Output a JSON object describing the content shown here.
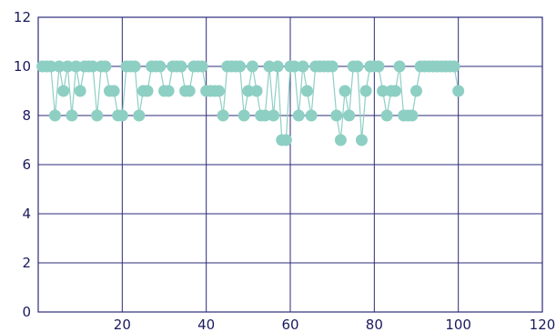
{
  "chart_data": {
    "type": "line",
    "title": "",
    "xlabel": "",
    "ylabel": "",
    "xlim": [
      0,
      120
    ],
    "ylim": [
      0,
      12
    ],
    "x_ticks": [
      20,
      40,
      60,
      80,
      100,
      120
    ],
    "y_ticks": [
      0,
      2,
      4,
      6,
      8,
      10,
      12
    ],
    "grid": true,
    "legend": "none",
    "series": [
      {
        "color": "#8ecfc4",
        "marker": "circle",
        "x": [
          1,
          2,
          3,
          4,
          5,
          6,
          7,
          8,
          9,
          10,
          11,
          12,
          13,
          14,
          15,
          16,
          17,
          18,
          19,
          20,
          21,
          22,
          23,
          24,
          25,
          26,
          27,
          28,
          29,
          30,
          31,
          32,
          33,
          34,
          35,
          36,
          37,
          38,
          39,
          40,
          41,
          42,
          43,
          44,
          45,
          46,
          47,
          48,
          49,
          50,
          51,
          52,
          53,
          54,
          55,
          56,
          57,
          58,
          59,
          60,
          61,
          62,
          63,
          64,
          65,
          66,
          67,
          68,
          69,
          70,
          71,
          72,
          73,
          74,
          75,
          76,
          77,
          78,
          79,
          80,
          81,
          82,
          83,
          84,
          85,
          86,
          87,
          88,
          89,
          90,
          91,
          92,
          93,
          94,
          95,
          96,
          97,
          98,
          99,
          100
        ],
        "y": [
          10,
          10,
          10,
          8,
          10,
          9,
          10,
          8,
          10,
          9,
          10,
          10,
          10,
          8,
          10,
          10,
          9,
          9,
          8,
          8,
          10,
          10,
          10,
          8,
          9,
          9,
          10,
          10,
          10,
          9,
          9,
          10,
          10,
          10,
          9,
          9,
          10,
          10,
          10,
          9,
          9,
          9,
          9,
          8,
          10,
          10,
          10,
          10,
          8,
          9,
          10,
          9,
          8,
          8,
          10,
          8,
          10,
          7,
          7,
          10,
          10,
          8,
          10,
          9,
          8,
          10,
          10,
          10,
          10,
          10,
          8,
          7,
          9,
          8,
          10,
          10,
          7,
          9,
          10,
          10,
          10,
          9,
          8,
          9,
          9,
          10,
          8,
          8,
          8,
          9,
          10,
          10,
          10,
          10,
          10,
          10,
          10,
          10,
          10,
          9
        ]
      }
    ]
  }
}
